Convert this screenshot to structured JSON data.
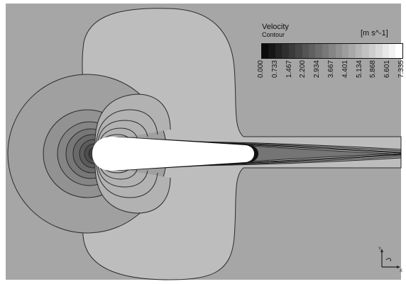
{
  "legend": {
    "title": "Velocity",
    "subtitle": "Contour",
    "units": "[m s^-1]",
    "ticks": [
      "0.000",
      "0.733",
      "1.467",
      "2.200",
      "2.934",
      "3.667",
      "4.401",
      "5.134",
      "5.868",
      "6.601",
      "7.335"
    ]
  },
  "triad": {
    "y_label": "Y",
    "x_label": "X"
  },
  "colors": {
    "background": "#a6a6a6",
    "contour_line": "#2b2b2b",
    "body": "#ffffff"
  }
}
